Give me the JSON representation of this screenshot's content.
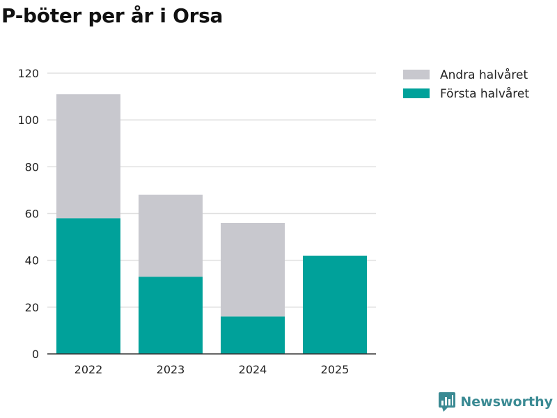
{
  "chart_data": {
    "type": "bar",
    "stacked": true,
    "title": "P-böter per år i Orsa",
    "categories": [
      "2022",
      "2023",
      "2024",
      "2025"
    ],
    "series": [
      {
        "name": "Första halvåret",
        "values": [
          58,
          33,
          16,
          42
        ],
        "color": "#00a19a"
      },
      {
        "name": "Andra halvåret",
        "values": [
          53,
          35,
          40,
          0
        ],
        "color": "#c8c8ce"
      }
    ],
    "legend_order": [
      "Andra halvåret",
      "Första halvåret"
    ],
    "xlabel": "",
    "ylabel": "",
    "ylim": [
      0,
      120
    ],
    "yticks": [
      0,
      20,
      40,
      60,
      80,
      100,
      120
    ],
    "grid": true,
    "legend_position": "top-right"
  },
  "brand": {
    "name": "Newsworthy",
    "color": "#3a8a93"
  }
}
